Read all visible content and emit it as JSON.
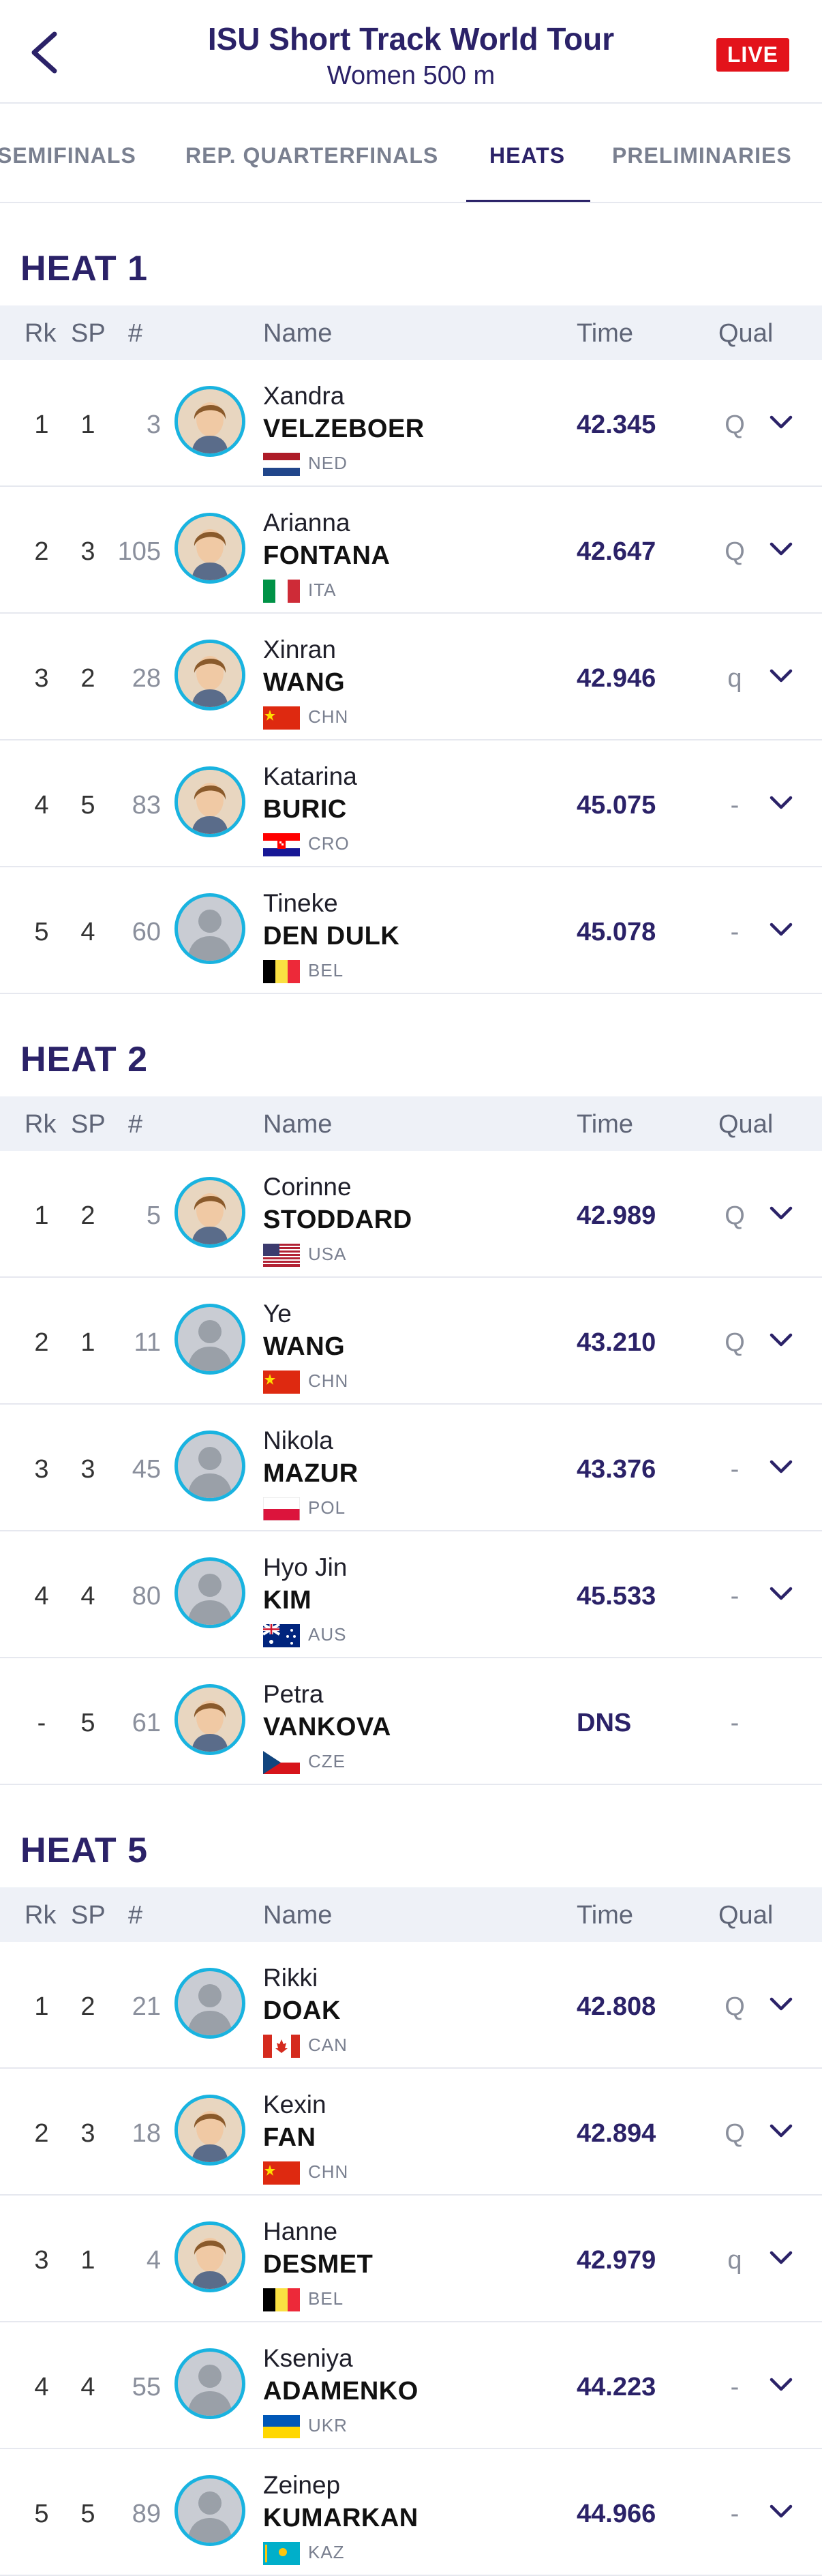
{
  "header": {
    "title": "ISU Short Track World Tour",
    "subtitle": "Women 500 m",
    "live": "LIVE"
  },
  "tabs": [
    "SEMIFINALS",
    "REP. QUARTERFINALS",
    "HEATS",
    "PRELIMINARIES"
  ],
  "active_tab": "HEATS",
  "columns": {
    "rk": "Rk",
    "sp": "SP",
    "num": "#",
    "name": "Name",
    "time": "Time",
    "qual": "Qual"
  },
  "heats": [
    {
      "title": "HEAT 1",
      "rows": [
        {
          "rk": "1",
          "sp": "1",
          "num": "3",
          "first": "Xandra",
          "last": "VELZEBOER",
          "nat": "NED",
          "time": "42.345",
          "qual": "Q",
          "photo": true
        },
        {
          "rk": "2",
          "sp": "3",
          "num": "105",
          "first": "Arianna",
          "last": "FONTANA",
          "nat": "ITA",
          "time": "42.647",
          "qual": "Q",
          "photo": true
        },
        {
          "rk": "3",
          "sp": "2",
          "num": "28",
          "first": "Xinran",
          "last": "WANG",
          "nat": "CHN",
          "time": "42.946",
          "qual": "q",
          "photo": true
        },
        {
          "rk": "4",
          "sp": "5",
          "num": "83",
          "first": "Katarina",
          "last": "BURIC",
          "nat": "CRO",
          "time": "45.075",
          "qual": "-",
          "photo": true
        },
        {
          "rk": "5",
          "sp": "4",
          "num": "60",
          "first": "Tineke",
          "last": "DEN DULK",
          "nat": "BEL",
          "time": "45.078",
          "qual": "-",
          "photo": false
        }
      ]
    },
    {
      "title": "HEAT 2",
      "rows": [
        {
          "rk": "1",
          "sp": "2",
          "num": "5",
          "first": "Corinne",
          "last": "STODDARD",
          "nat": "USA",
          "time": "42.989",
          "qual": "Q",
          "photo": true
        },
        {
          "rk": "2",
          "sp": "1",
          "num": "11",
          "first": "Ye",
          "last": "WANG",
          "nat": "CHN",
          "time": "43.210",
          "qual": "Q",
          "photo": false
        },
        {
          "rk": "3",
          "sp": "3",
          "num": "45",
          "first": "Nikola",
          "last": "MAZUR",
          "nat": "POL",
          "time": "43.376",
          "qual": "-",
          "photo": false
        },
        {
          "rk": "4",
          "sp": "4",
          "num": "80",
          "first": "Hyo Jin",
          "last": "KIM",
          "nat": "AUS",
          "time": "45.533",
          "qual": "-",
          "photo": false
        },
        {
          "rk": "-",
          "sp": "5",
          "num": "61",
          "first": "Petra",
          "last": "VANKOVA",
          "nat": "CZE",
          "time": "DNS",
          "qual": "-",
          "photo": true,
          "no_chevron": true
        }
      ]
    },
    {
      "title": "HEAT 5",
      "rows": [
        {
          "rk": "1",
          "sp": "2",
          "num": "21",
          "first": "Rikki",
          "last": "DOAK",
          "nat": "CAN",
          "time": "42.808",
          "qual": "Q",
          "photo": false
        },
        {
          "rk": "2",
          "sp": "3",
          "num": "18",
          "first": "Kexin",
          "last": "FAN",
          "nat": "CHN",
          "time": "42.894",
          "qual": "Q",
          "photo": true
        },
        {
          "rk": "3",
          "sp": "1",
          "num": "4",
          "first": "Hanne",
          "last": "DESMET",
          "nat": "BEL",
          "time": "42.979",
          "qual": "q",
          "photo": true
        },
        {
          "rk": "4",
          "sp": "4",
          "num": "55",
          "first": "Kseniya",
          "last": "ADAMENKO",
          "nat": "UKR",
          "time": "44.223",
          "qual": "-",
          "photo": false
        },
        {
          "rk": "5",
          "sp": "5",
          "num": "89",
          "first": "Zeinep",
          "last": "KUMARKAN",
          "nat": "KAZ",
          "time": "44.966",
          "qual": "-",
          "photo": false
        }
      ]
    }
  ],
  "colors": {
    "primary": "#2b2268",
    "live": "#e3131b",
    "avatar_ring": "#19b3e0",
    "header_band": "#eef1f7"
  }
}
